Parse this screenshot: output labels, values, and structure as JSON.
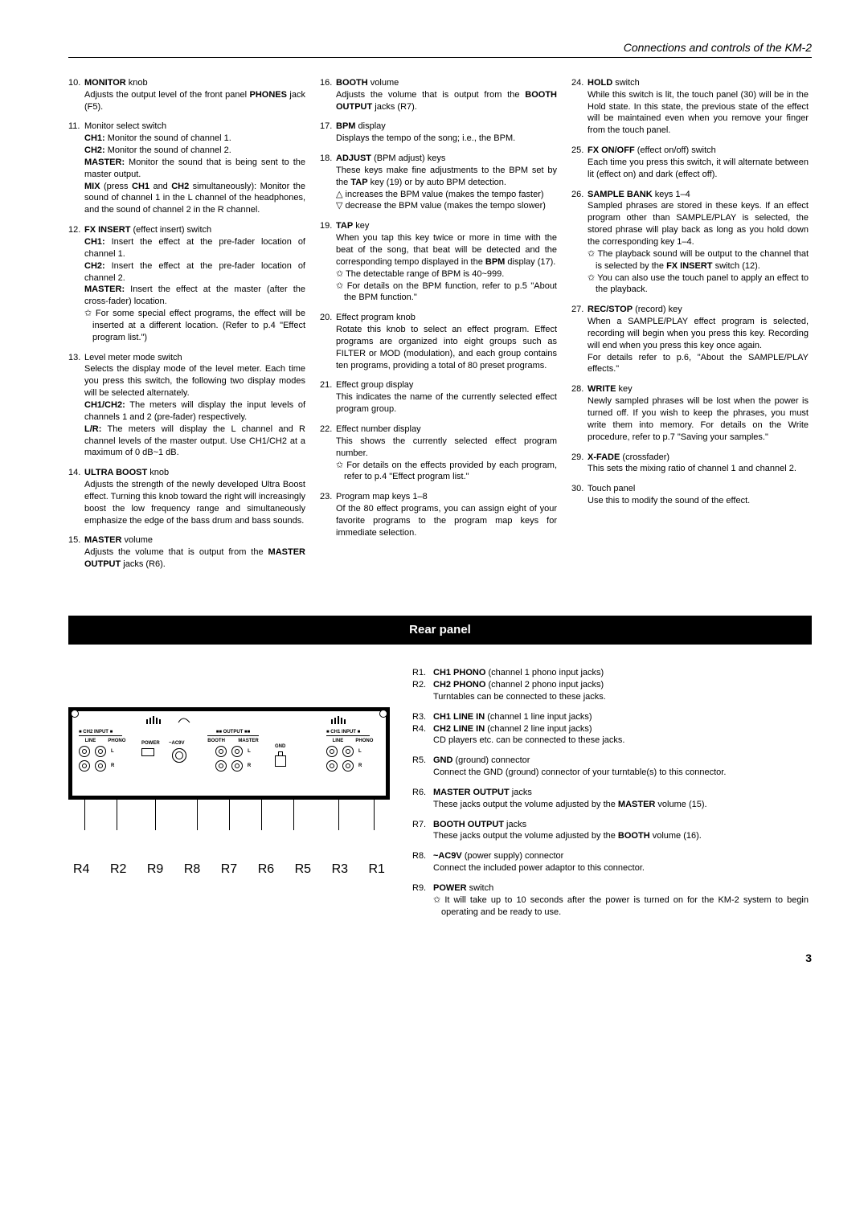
{
  "header": "Connections and controls of the KM-2",
  "items": {
    "10": {
      "title": "MONITOR",
      "suffix": " knob",
      "body": "Adjusts the output level of the front panel <b>PHONES</b> jack (F5)."
    },
    "11": {
      "title": "",
      "suffix": "Monitor select switch",
      "body": "<b>CH1:</b> Monitor the sound of channel 1.<br><b>CH2:</b> Monitor the sound of channel 2.<br><b>MASTER:</b> Monitor the sound that is being sent to the master output.<br><b>MIX</b> (press <b>CH1</b> and <b>CH2</b> simultaneously): Monitor the sound of channel 1 in the L channel of the headphones, and the sound of channel 2 in the R channel."
    },
    "12": {
      "title": "FX INSERT",
      "suffix": " (effect insert) switch",
      "body": "<b>CH1:</b> Insert the effect at the pre-fader location of channel 1.<br><b>CH2:</b> Insert the effect at the pre-fader location of channel 2.<br><b>MASTER:</b> Insert the effect at the master (after the cross-fader) location.<div class='sub'>✩ For some special effect programs, the effect will be inserted at a different location. (Refer to p.4 \"Effect program list.\")</div>"
    },
    "13": {
      "title": "",
      "suffix": "Level meter mode switch",
      "body": "Selects the display mode of the level meter. Each time you press this switch, the following two display modes will be selected alternately.<br><b>CH1/CH2:</b> The meters will display the input levels of channels 1 and 2 (pre-fader) respectively.<br><b>L/R:</b> The meters will display the L channel and R channel levels of the master output. Use CH1/CH2 at a maximum of 0 dB~1 dB."
    },
    "14": {
      "title": "ULTRA BOOST",
      "suffix": " knob",
      "body": "Adjusts the strength of the newly developed Ultra Boost effect. Turning this knob toward the right will increasingly boost the low frequency range and simultaneously emphasize the edge of the bass drum and bass sounds."
    },
    "15": {
      "title": "MASTER",
      "suffix": " volume",
      "body": "Adjusts the volume that is output from the <b>MASTER OUTPUT</b> jacks (R6)."
    },
    "16": {
      "title": "BOOTH",
      "suffix": " volume",
      "body": "Adjusts the volume that is output from the <b>BOOTH OUTPUT</b> jacks (R7)."
    },
    "17": {
      "title": "BPM",
      "suffix": " display",
      "body": "Displays the tempo of the song; i.e., the BPM."
    },
    "18": {
      "title": "ADJUST",
      "suffix": " (BPM adjust) keys",
      "body": "These keys make fine adjustments to the BPM set by the <b>TAP</b> key (19) or by auto BPM detection.<div class='sub'>△ increases the BPM value (makes the tempo faster)</div><div class='sub'>▽ decrease the BPM value (makes the tempo slower)</div>"
    },
    "19": {
      "title": "TAP",
      "suffix": " key",
      "body": "When you tap this key twice or more in time with the beat of the song, that beat will be detected and the corresponding tempo displayed in the <b>BPM</b> display (17).<div class='sub'>✩ The detectable range of BPM is 40~999.</div><div class='sub'>✩ For details on the BPM function, refer to p.5 \"About the BPM function.\"</div>"
    },
    "20": {
      "title": "",
      "suffix": "Effect program knob",
      "body": "Rotate this knob to select an effect program. Effect programs are organized into eight groups such as FILTER or MOD (modulation), and each group contains ten programs, providing a total of 80 preset programs."
    },
    "21": {
      "title": "",
      "suffix": "Effect group display",
      "body": "This indicates the name of the currently selected effect program group."
    },
    "22": {
      "title": "",
      "suffix": "Effect number display",
      "body": "This shows the currently selected effect program number.<div class='sub'>✩ For details on the effects provided by each program, refer to p.4 \"Effect program list.\"</div>"
    },
    "23": {
      "title": "",
      "suffix": "Program map keys 1–8",
      "body": "Of the 80 effect programs, you can assign eight of your favorite programs to the program map keys for immediate selection."
    },
    "24": {
      "title": "HOLD",
      "suffix": " switch",
      "body": "While this switch is lit, the touch panel (30) will be in the Hold state. In this state, the previous state of the effect will be maintained even when you remove your finger from the touch panel."
    },
    "25": {
      "title": "FX ON/OFF",
      "suffix": " (effect on/off) switch",
      "body": "Each time you press this switch, it will alternate between lit (effect on) and dark (effect off)."
    },
    "26": {
      "title": "SAMPLE BANK",
      "suffix": " keys 1–4",
      "body": "Sampled phrases are stored in these keys. If an effect program other than SAMPLE/PLAY is selected, the stored phrase will play back as long as you hold down the corresponding key 1–4.<div class='sub'>✩ The playback sound will be output to the channel that is selected by the <b>FX INSERT</b> switch (12).</div><div class='sub'>✩ You can also use the touch panel to apply an effect to the playback.</div>"
    },
    "27": {
      "title": "REC/STOP",
      "suffix": " (record) key",
      "body": "When a SAMPLE/PLAY effect program is selected, recording will begin when you press this key. Recording will end when you press this key once again.<br>For details refer to p.6, \"About the SAMPLE/PLAY effects.\""
    },
    "28": {
      "title": "WRITE",
      "suffix": " key",
      "body": "Newly sampled phrases will be lost when the power is turned off. If you wish to keep the phrases, you must write them into memory. For details on the Write procedure, refer to p.7 \"Saving your samples.\""
    },
    "29": {
      "title": "X-FADE",
      "suffix": " (crossfader)",
      "body": "This sets the mixing ratio of channel 1 and channel 2."
    },
    "30": {
      "title": "",
      "suffix": "Touch panel",
      "body": "Use this to modify the sound of the effect."
    }
  },
  "section_title": "Rear panel",
  "rear": {
    "R1": {
      "t": "CH1 PHONO",
      "s": " (channel 1 phono input jacks)",
      "b": ""
    },
    "R2": {
      "t": "CH2 PHONO",
      "s": " (channel 2 phono input jacks)",
      "b": "Turntables can be connected to these jacks."
    },
    "R3": {
      "t": "CH1 LINE IN",
      "s": " (channel 1 line input jacks)",
      "b": ""
    },
    "R4": {
      "t": "CH2 LINE IN",
      "s": " (channel 2 line input jacks)",
      "b": "CD players etc. can be connected to these jacks."
    },
    "R5": {
      "t": "GND",
      "s": " (ground) connector",
      "b": "Connect the GND (ground) connector of your turntable(s) to this connector."
    },
    "R6": {
      "t": "MASTER OUTPUT",
      "s": " jacks",
      "b": "These jacks output the volume adjusted by the <b>MASTER</b> volume (15)."
    },
    "R7": {
      "t": "BOOTH OUTPUT",
      "s": " jacks",
      "b": "These jacks output the volume adjusted by the <b>BOOTH</b> volume (16)."
    },
    "R8": {
      "t": "~AC9V",
      "s": " (power supply) connector",
      "b": "Connect the included power adaptor to this connector."
    },
    "R9": {
      "t": "POWER",
      "s": " switch",
      "b": "<div class='sub'>✩ It will take up to 10 seconds after the power is turned on for the KM-2 system to begin operating and be ready to use.</div>"
    }
  },
  "rear_labels": [
    "R4",
    "R2",
    "R9",
    "R8",
    "R7",
    "R6",
    "R5",
    "R3",
    "R1"
  ],
  "rear_positions_pct": [
    5,
    15,
    27,
    40,
    50,
    60,
    70,
    84,
    95
  ],
  "page": "3"
}
